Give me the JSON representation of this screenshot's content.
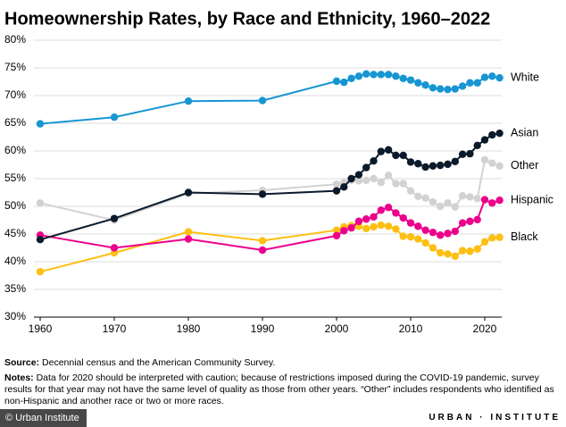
{
  "chart_data": {
    "type": "line",
    "title": "Homeownership Rates, by Race and Ethnicity, 1960–2022",
    "x": [
      1960,
      1970,
      1980,
      1990,
      2000,
      2001,
      2002,
      2003,
      2004,
      2005,
      2006,
      2007,
      2008,
      2009,
      2010,
      2011,
      2012,
      2013,
      2014,
      2015,
      2016,
      2017,
      2018,
      2019,
      2020,
      2021,
      2022
    ],
    "series": [
      {
        "name": "Other",
        "color": "#d2d2d2",
        "values": [
          50.6,
          47.5,
          52.3,
          52.9,
          54.0,
          54.3,
          54.7,
          54.6,
          54.7,
          55.0,
          54.3,
          55.6,
          54.1,
          54.1,
          52.8,
          51.8,
          51.5,
          50.8,
          50.0,
          50.6,
          49.9,
          51.9,
          51.7,
          51.4,
          58.4,
          57.8,
          57.3
        ]
      },
      {
        "name": "Black",
        "color": "#fdbf11",
        "values": [
          38.2,
          41.6,
          45.4,
          43.8,
          45.7,
          46.3,
          46.5,
          46.4,
          46.0,
          46.3,
          46.6,
          46.4,
          45.9,
          44.6,
          44.5,
          44.1,
          43.4,
          42.5,
          41.6,
          41.4,
          41.0,
          42.0,
          41.9,
          42.3,
          43.6,
          44.3,
          44.4
        ]
      },
      {
        "name": "Hispanic",
        "color": "#ec008b",
        "values": [
          44.8,
          42.5,
          44.1,
          42.1,
          44.7,
          45.6,
          46.1,
          47.3,
          47.7,
          48.1,
          49.3,
          49.8,
          48.8,
          47.9,
          47.0,
          46.4,
          45.7,
          45.3,
          44.8,
          45.1,
          45.5,
          47.0,
          47.3,
          47.6,
          51.2,
          50.6,
          51.1
        ]
      },
      {
        "name": "Asian",
        "color": "#0b1a2b",
        "values": [
          44.0,
          47.8,
          52.5,
          52.2,
          52.8,
          53.5,
          55.0,
          55.7,
          57.0,
          58.2,
          59.9,
          60.2,
          59.2,
          59.2,
          58.0,
          57.7,
          57.1,
          57.3,
          57.4,
          57.6,
          58.1,
          59.4,
          59.5,
          61.0,
          62.0,
          62.9,
          63.2
        ]
      },
      {
        "name": "White",
        "color": "#1696d2",
        "values": [
          64.9,
          66.1,
          69.0,
          69.1,
          72.6,
          72.4,
          73.1,
          73.5,
          73.9,
          73.8,
          73.8,
          73.8,
          73.5,
          73.1,
          72.8,
          72.3,
          71.9,
          71.4,
          71.2,
          71.1,
          71.2,
          71.7,
          72.3,
          72.3,
          73.3,
          73.5,
          73.2
        ]
      }
    ],
    "xlim": [
      1960,
      2022
    ],
    "xticks": [
      1960,
      1970,
      1980,
      1990,
      2000,
      2010,
      2020
    ],
    "ylim": [
      30,
      80
    ],
    "yticks": [
      {
        "value": 30,
        "label": "30%"
      },
      {
        "value": 35,
        "label": "35%"
      },
      {
        "value": 40,
        "label": "40%"
      },
      {
        "value": 45,
        "label": "45%"
      },
      {
        "value": 50,
        "label": "50%"
      },
      {
        "value": 55,
        "label": "55%"
      },
      {
        "value": 60,
        "label": "60%"
      },
      {
        "value": 65,
        "label": "65%"
      },
      {
        "value": 70,
        "label": "70%"
      },
      {
        "value": 75,
        "label": "75%"
      },
      {
        "value": 80,
        "label": "80%"
      }
    ],
    "grid": true,
    "source_label": "Source:",
    "source": "Decennial census and the American Community Survey.",
    "notes_label": "Notes:",
    "notes": "Data for 2020 should be interpreted with caution; because of restrictions imposed during the COVID-19 pandemic, survey results for that year may not have the same level of quality as those from other years. “Other” includes respondents who identified as non-Hispanic and another race or two or more races.",
    "copyright": "© Urban Institute",
    "logo": "URBAN · INSTITUTE"
  }
}
